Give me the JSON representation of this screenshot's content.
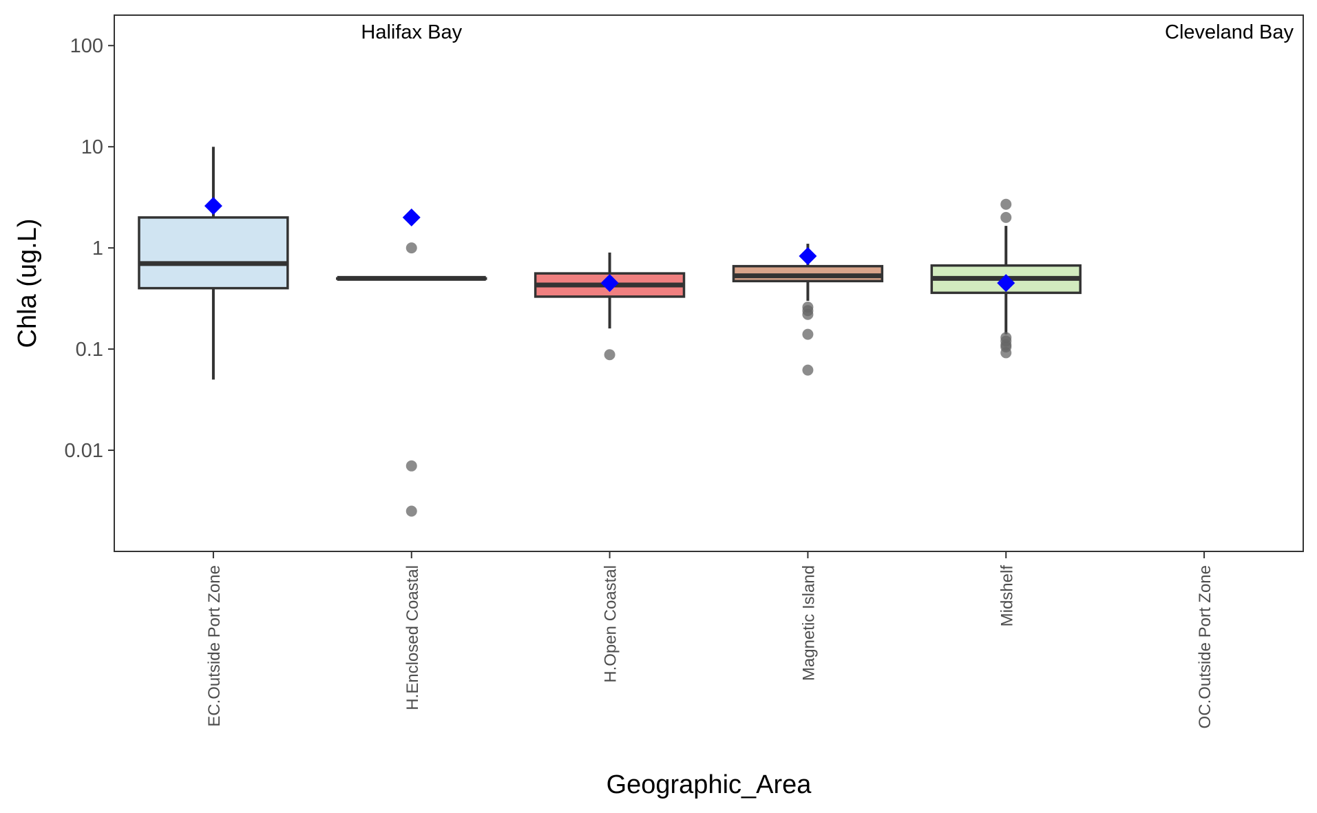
{
  "chart_data": {
    "type": "box",
    "xlabel": "Geographic_Area",
    "ylabel": "Chla (ug.L)",
    "y_scale": "log10",
    "ylim": [
      0.001,
      200
    ],
    "y_ticks": [
      {
        "value": 0.01,
        "label": "0.01"
      },
      {
        "value": 0.1,
        "label": "0.1"
      },
      {
        "value": 1,
        "label": "1"
      },
      {
        "value": 10,
        "label": "10"
      },
      {
        "value": 100,
        "label": "100"
      }
    ],
    "grid": false,
    "categories": [
      "EC.Outside Port Zone",
      "H.Enclosed Coastal",
      "H.Open Coastal",
      "Magnetic Island",
      "Midshelf",
      "OC.Outside Port Zone"
    ],
    "annotations": [
      {
        "text": "Halifax Bay",
        "category_index": 1,
        "y": 140
      },
      {
        "text": "Cleveland Bay",
        "category_index": 5,
        "y": 140
      }
    ],
    "boxes": [
      {
        "category": "EC.Outside Port Zone",
        "q1": 0.4,
        "median": 0.7,
        "q3": 2.0,
        "whisker_low": 0.05,
        "whisker_high": 10.0,
        "mean": 2.6,
        "outliers": [],
        "fill": "#d0e4f2"
      },
      {
        "category": "H.Enclosed Coastal",
        "q1": 0.5,
        "median": 0.5,
        "q3": 0.5,
        "whisker_low": 0.5,
        "whisker_high": 0.5,
        "mean": 2.0,
        "outliers": [
          1.0,
          0.007,
          0.0025
        ],
        "fill": "#ffffff"
      },
      {
        "category": "H.Open Coastal",
        "q1": 0.33,
        "median": 0.43,
        "q3": 0.56,
        "whisker_low": 0.16,
        "whisker_high": 0.9,
        "mean": 0.45,
        "outliers": [
          0.088
        ],
        "fill": "#f08080"
      },
      {
        "category": "Magnetic Island",
        "q1": 0.47,
        "median": 0.53,
        "q3": 0.66,
        "whisker_low": 0.3,
        "whisker_high": 1.1,
        "mean": 0.83,
        "outliers": [
          0.26,
          0.24,
          0.22,
          0.14,
          0.062
        ],
        "fill": "#d9a48a"
      },
      {
        "category": "Midshelf",
        "q1": 0.36,
        "median": 0.5,
        "q3": 0.67,
        "whisker_low": 0.14,
        "whisker_high": 1.65,
        "mean": 0.45,
        "outliers": [
          2.7,
          2.0,
          0.13,
          0.12,
          0.11,
          0.105,
          0.092
        ],
        "fill": "#d2ebbf"
      },
      {
        "category": "OC.Outside Port Zone",
        "q1": null,
        "median": null,
        "q3": null,
        "whisker_low": null,
        "whisker_high": null,
        "mean": null,
        "outliers": [],
        "fill": "#ffffff"
      }
    ],
    "colors": {
      "box_line": "#333333",
      "mean_marker": "#0000ff",
      "outlier": "#666666",
      "axis": "#333333"
    }
  }
}
